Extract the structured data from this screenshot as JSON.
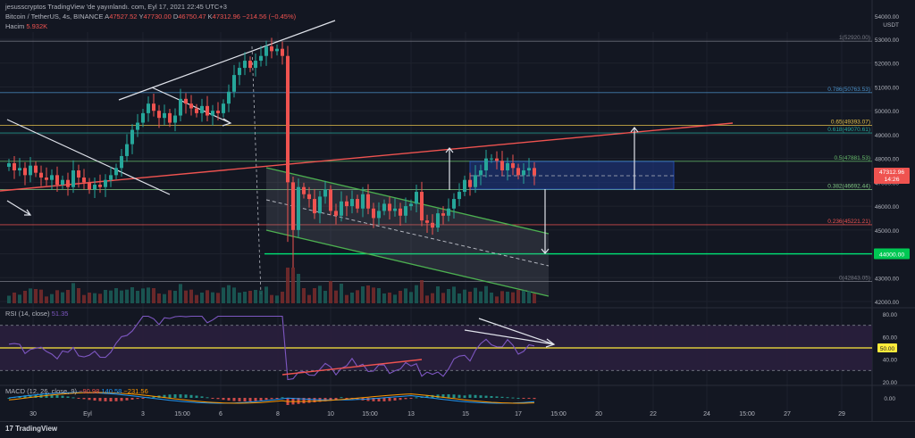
{
  "header": {
    "title_line": "jesusscryptos TradingView 'de yayınlandı. com, Eyl 17, 2021 22:45 UTC+3",
    "symbol_line": "Bitcoin / TetherUS, 4s, BINANCE",
    "o_label": "A",
    "o_value": "47527.52",
    "h_label": "Y",
    "h_value": "47730.00",
    "l_label": "D",
    "l_value": "46750.47",
    "c_label": "K",
    "c_value": "47312.96",
    "change": "−214.56 (−0.45%)",
    "volume_label": "Hacim",
    "volume_value": "5.932K",
    "rsi_label": "RSI (14, close)",
    "rsi_value": "51.35",
    "macd_label": "MACD (12, 26, close, 9)",
    "macd_values": [
      "−90.98",
      "140.58",
      "−231.56"
    ]
  },
  "currency": "USDT",
  "last_price": {
    "value": "47312.96",
    "countdown": "14:26"
  },
  "fib_levels": [
    {
      "label": "1(52920.00)",
      "price": 52920.0,
      "color": "#787b86"
    },
    {
      "label": "0.786(50763.53)",
      "price": 50763.53,
      "color": "#4a90c8"
    },
    {
      "label": "0.65(49393.07)",
      "price": 49393.07,
      "color": "#e6c34a"
    },
    {
      "label": "0.618(49070.61)",
      "price": 49070.61,
      "color": "#26a69a"
    },
    {
      "label": "0.5(47881.53)",
      "price": 47881.53,
      "color": "#66bb6a"
    },
    {
      "label": "0.382(46692.44)",
      "price": 46692.44,
      "color": "#81c784"
    },
    {
      "label": "0.236(45221.21)",
      "price": 45221.21,
      "color": "#ef5350"
    },
    {
      "label": "0(42843.05)",
      "price": 42843.05,
      "color": "#787b86"
    }
  ],
  "support_level": {
    "label": "44000.00",
    "price": 44000.0
  },
  "price_axis": {
    "min": 42000,
    "max": 54000,
    "ticks": [
      "53000.00",
      "52000.00",
      "51000.00",
      "50000.00",
      "49000.00",
      "48000.00",
      "47000.00",
      "46000.00",
      "45000.00",
      "44000.00",
      "43000.00",
      "42000.00"
    ],
    "top_tick": "54000.00"
  },
  "rsi_axis": {
    "ticks": [
      "80.00",
      "60.00",
      "40.00",
      "20.00"
    ],
    "badge": "50.00",
    "upper": 70,
    "lower": 30,
    "mid": 50
  },
  "macd_axis": {
    "ticks": [
      "0.00"
    ]
  },
  "time_axis": {
    "labels": [
      {
        "t": "30",
        "x": 37
      },
      {
        "t": "Eyl",
        "x": 98
      },
      {
        "t": "3",
        "x": 160
      },
      {
        "t": "15:00",
        "x": 204
      },
      {
        "t": "6",
        "x": 247
      },
      {
        "t": "8",
        "x": 311
      },
      {
        "t": "10",
        "x": 370
      },
      {
        "t": "15:00",
        "x": 414
      },
      {
        "t": "13",
        "x": 460
      },
      {
        "t": "15",
        "x": 521
      },
      {
        "t": "17",
        "x": 580
      },
      {
        "t": "15:00",
        "x": 625
      },
      {
        "t": "20",
        "x": 670
      },
      {
        "t": "22",
        "x": 731
      },
      {
        "t": "24",
        "x": 791
      },
      {
        "t": "15:00",
        "x": 836
      },
      {
        "t": "27",
        "x": 881
      },
      {
        "t": "29",
        "x": 942
      }
    ]
  },
  "colors": {
    "up": "#26a69a",
    "down": "#ef5350",
    "bg": "#131722",
    "grid": "#1e222d",
    "channel": "#4caf50",
    "rsi_line": "#7e57c2",
    "rsi_band": "#2a1f3d"
  },
  "footer": {
    "logo_text": "TradingView"
  },
  "chart_data": {
    "type": "candlestick",
    "symbol": "Bitcoin / TetherUS",
    "interval": "4s",
    "exchange": "BINANCE",
    "y_range": [
      42000,
      54000
    ],
    "closes_approx": [
      47800,
      47500,
      47600,
      47300,
      47700,
      47400,
      47200,
      47100,
      47300,
      46900,
      47100,
      46800,
      47500,
      47200,
      47000,
      46700,
      46900,
      46800,
      47100,
      47300,
      47600,
      48100,
      48600,
      49200,
      49500,
      49900,
      50300,
      50000,
      49700,
      49900,
      49500,
      49800,
      50500,
      50300,
      50100,
      49900,
      50200,
      49800,
      50000,
      49900,
      50300,
      50800,
      51500,
      51800,
      52100,
      51800,
      52100,
      52300,
      52700,
      52500,
      52600,
      52300,
      47000,
      45000,
      46800,
      46500,
      46300,
      45700,
      46400,
      46700,
      45800,
      45600,
      46200,
      46000,
      46300,
      45900,
      46500,
      45900,
      45500,
      45800,
      46100,
      45800,
      45900,
      45600,
      46000,
      46100,
      46600,
      45400,
      45300,
      45100,
      45700,
      45600,
      45900,
      46300,
      46600,
      47100,
      46800,
      47300,
      47500,
      48000,
      48000,
      47900,
      47500,
      47800,
      47600,
      47300,
      47500,
      47600,
      47300
    ],
    "rsi_range": [
      20,
      80
    ],
    "annotations": [
      "44000.00"
    ]
  }
}
